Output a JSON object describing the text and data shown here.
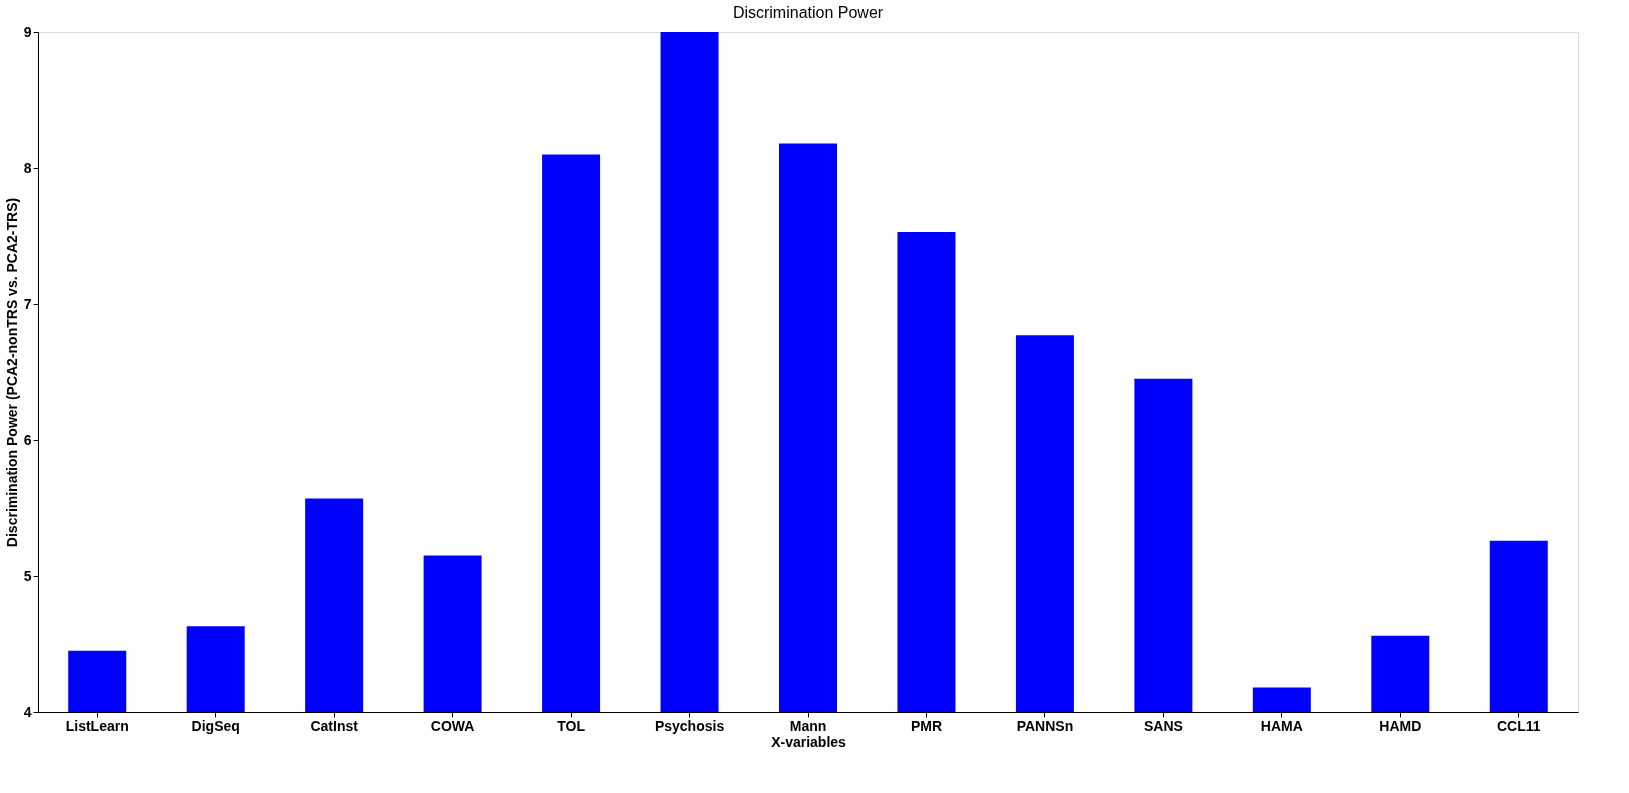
{
  "chart_data": {
    "type": "bar",
    "title": "Discrimination Power",
    "xlabel": "X-variables",
    "ylabel": "Discrimination Power (PCA2-nonTRS vs. PCA2-TRS)",
    "categories": [
      "ListLearn",
      "DigSeq",
      "CatInst",
      "COWA",
      "TOL",
      "Psychosis",
      "Mann",
      "PMR",
      "PANNSn",
      "SANS",
      "HAMA",
      "HAMD",
      "CCL11"
    ],
    "values": [
      4.45,
      4.63,
      5.57,
      5.15,
      8.1,
      9.0,
      8.18,
      7.53,
      6.77,
      6.45,
      4.18,
      4.56,
      5.26
    ],
    "color": "#0000ff",
    "ylim": [
      4,
      9
    ],
    "yticks": [
      4,
      5,
      6,
      7,
      8,
      9
    ],
    "grid": false
  }
}
